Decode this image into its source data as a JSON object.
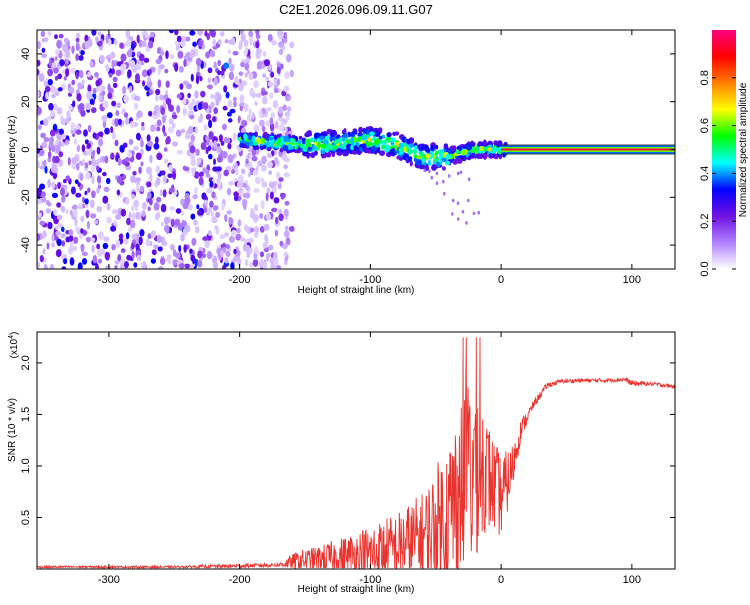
{
  "chart_data": [
    {
      "type": "heatmap",
      "title": "C2E1.2026.096.09.11.G07",
      "xlabel": "Height of straight line (km)",
      "ylabel": "Frequency (Hz)",
      "xlim": [
        -355,
        133
      ],
      "ylim": [
        -50,
        50
      ],
      "xticks": [
        -300,
        -200,
        -100,
        0,
        100
      ],
      "yticks": [
        -40,
        -20,
        0,
        20,
        40
      ],
      "colorbar": {
        "label": "Normalized spectral amplitude",
        "range": [
          0,
          1
        ],
        "ticks": [
          "0.0",
          "0.2",
          "0.4",
          "0.6",
          "0.8"
        ],
        "colors": [
          "#ffffff",
          "#b080ff",
          "#7010e0",
          "#0000ff",
          "#00ffff",
          "#00ff00",
          "#ffff00",
          "#ff8000",
          "#ff0000",
          "#ff0080"
        ]
      },
      "regions": [
        {
          "name": "noise",
          "x_range": [
            -355,
            -160
          ],
          "y_range": [
            -50,
            50
          ],
          "amplitude": 0.1
        },
        {
          "name": "signal-track",
          "x_range": [
            -200,
            5
          ],
          "center_freq_hz": [
            [
              -200,
              4
            ],
            [
              -150,
              2
            ],
            [
              -120,
              3
            ],
            [
              -100,
              4
            ],
            [
              -80,
              2
            ],
            [
              -60,
              -3
            ],
            [
              -40,
              -3
            ],
            [
              -20,
              0
            ],
            [
              0,
              0
            ]
          ],
          "amplitude": 0.35
        },
        {
          "name": "carrier-line",
          "x_range": [
            0,
            133
          ],
          "freq_hz": 0,
          "amplitude": 0.95
        }
      ]
    },
    {
      "type": "line",
      "xlabel": "Height of straight line (km)",
      "ylabel": "SNR (10 * v/v)",
      "y_multiplier": "(x10",
      "y_multiplier_exp": "4",
      "y_multiplier_close": ")",
      "xlim": [
        -355,
        133
      ],
      "ylim": [
        0,
        2.3
      ],
      "xticks": [
        -300,
        -200,
        -100,
        0,
        100
      ],
      "yticks": [
        "0.5",
        "1.0",
        "1.5",
        "2.0"
      ],
      "ytick_values": [
        0.5,
        1.0,
        1.5,
        2.0
      ],
      "series": [
        {
          "name": "SNR",
          "color": "#e8332e",
          "x": [
            -355,
            -250,
            -200,
            -170,
            -155,
            -140,
            -120,
            -100,
            -80,
            -60,
            -50,
            -40,
            -30,
            -22,
            -15,
            -8,
            0,
            8,
            15,
            25,
            35,
            45,
            60,
            80,
            95,
            100,
            110,
            120,
            133
          ],
          "y": [
            0.02,
            0.02,
            0.03,
            0.04,
            0.08,
            0.1,
            0.12,
            0.14,
            0.2,
            0.3,
            0.4,
            0.55,
            0.8,
            1.0,
            1.05,
            0.85,
            0.7,
            0.95,
            1.35,
            1.6,
            1.78,
            1.82,
            1.83,
            1.83,
            1.84,
            1.8,
            1.8,
            1.79,
            1.77
          ],
          "envelope": [
            0.01,
            0.01,
            0.02,
            0.02,
            0.1,
            0.12,
            0.2,
            0.3,
            0.35,
            0.45,
            0.6,
            0.75,
            0.9,
            1.1,
            0.7,
            0.5,
            0.4,
            0.25,
            0.1,
            0.04,
            0.03,
            0.02,
            0.02,
            0.02,
            0.02,
            0.03,
            0.02,
            0.02,
            0.02
          ]
        }
      ]
    }
  ]
}
